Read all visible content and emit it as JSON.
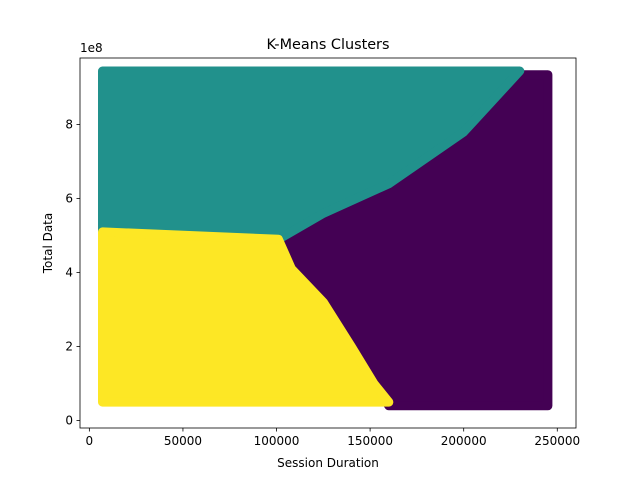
{
  "chart_data": {
    "type": "scatter",
    "title": "K-Means Clusters",
    "xlabel": "Session Duration",
    "ylabel": "Total Data",
    "y_offset_label": "1e8",
    "xlim": [
      -5000,
      260000
    ],
    "ylim": [
      -0.2,
      9.8
    ],
    "x_ticks": [
      0,
      50000,
      100000,
      150000,
      200000,
      250000
    ],
    "x_tick_labels": [
      "0",
      "50000",
      "100000",
      "150000",
      "200000",
      "250000"
    ],
    "y_ticks": [
      0,
      2,
      4,
      6,
      8
    ],
    "y_tick_labels": [
      "0",
      "2",
      "4",
      "6",
      "8"
    ],
    "grid": false,
    "series": [
      {
        "color": "#440154",
        "region": [
          [
            245000,
            0.4
          ],
          [
            245000,
            9.35
          ],
          [
            227000,
            9.35
          ],
          [
            200000,
            7.8
          ],
          [
            160000,
            6.4
          ],
          [
            125000,
            5.6
          ],
          [
            101000,
            4.9
          ],
          [
            108000,
            4.1
          ],
          [
            125000,
            3.2
          ],
          [
            140000,
            2.0
          ],
          [
            152000,
            1.0
          ],
          [
            160000,
            0.4
          ]
        ]
      },
      {
        "color": "#21918c",
        "region": [
          [
            7000,
            5.1
          ],
          [
            7000,
            9.45
          ],
          [
            230000,
            9.45
          ],
          [
            200000,
            7.8
          ],
          [
            160000,
            6.4
          ],
          [
            125000,
            5.6
          ],
          [
            101000,
            4.9
          ]
        ]
      },
      {
        "color": "#fde725",
        "region": [
          [
            7000,
            0.5
          ],
          [
            7000,
            5.1
          ],
          [
            101000,
            4.9
          ],
          [
            108000,
            4.1
          ],
          [
            125000,
            3.2
          ],
          [
            140000,
            2.0
          ],
          [
            152000,
            1.0
          ],
          [
            160000,
            0.5
          ]
        ]
      }
    ]
  }
}
